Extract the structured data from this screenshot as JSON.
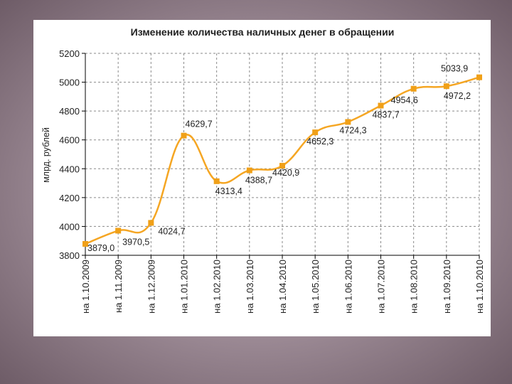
{
  "chart_data": {
    "type": "line",
    "title": "Изменение количества наличных денег в обращении",
    "xlabel": "",
    "ylabel": "млрд. рублей",
    "ylim": [
      3800,
      5200
    ],
    "yticks": [
      "3800",
      "4000",
      "4200",
      "4400",
      "4600",
      "4800",
      "5000",
      "5200"
    ],
    "grid": true,
    "colors": {
      "line": "#f5a623",
      "marker": "#f0a018",
      "grid": "#8a8a8a",
      "axis": "#000000"
    },
    "categories": [
      "на 1.10.2009",
      "на 1.11.2009",
      "на 1.12.2009",
      "на 1.01.2010",
      "на 1.02.2010",
      "на 1.03.2010",
      "на 1.04.2010",
      "на 1.05.2010",
      "на 1.06.2010",
      "на 1.07.2010",
      "на 1.08.2010",
      "на 1.09.2010",
      "на 1.10.2010"
    ],
    "values": [
      3879.0,
      3970.5,
      4024.7,
      4629.7,
      4313.4,
      4388.7,
      4420.9,
      4652.3,
      4724.3,
      4837.7,
      4954.6,
      4972.2,
      5033.9
    ],
    "data_labels": [
      "3879,0",
      "3970,5",
      "4024,7",
      "4629,7",
      "4313,4",
      "4388,7",
      "4420,9",
      "4652,3",
      "4724,3",
      "4837,7",
      "4954,6",
      "4972,2",
      "5033,9"
    ]
  }
}
